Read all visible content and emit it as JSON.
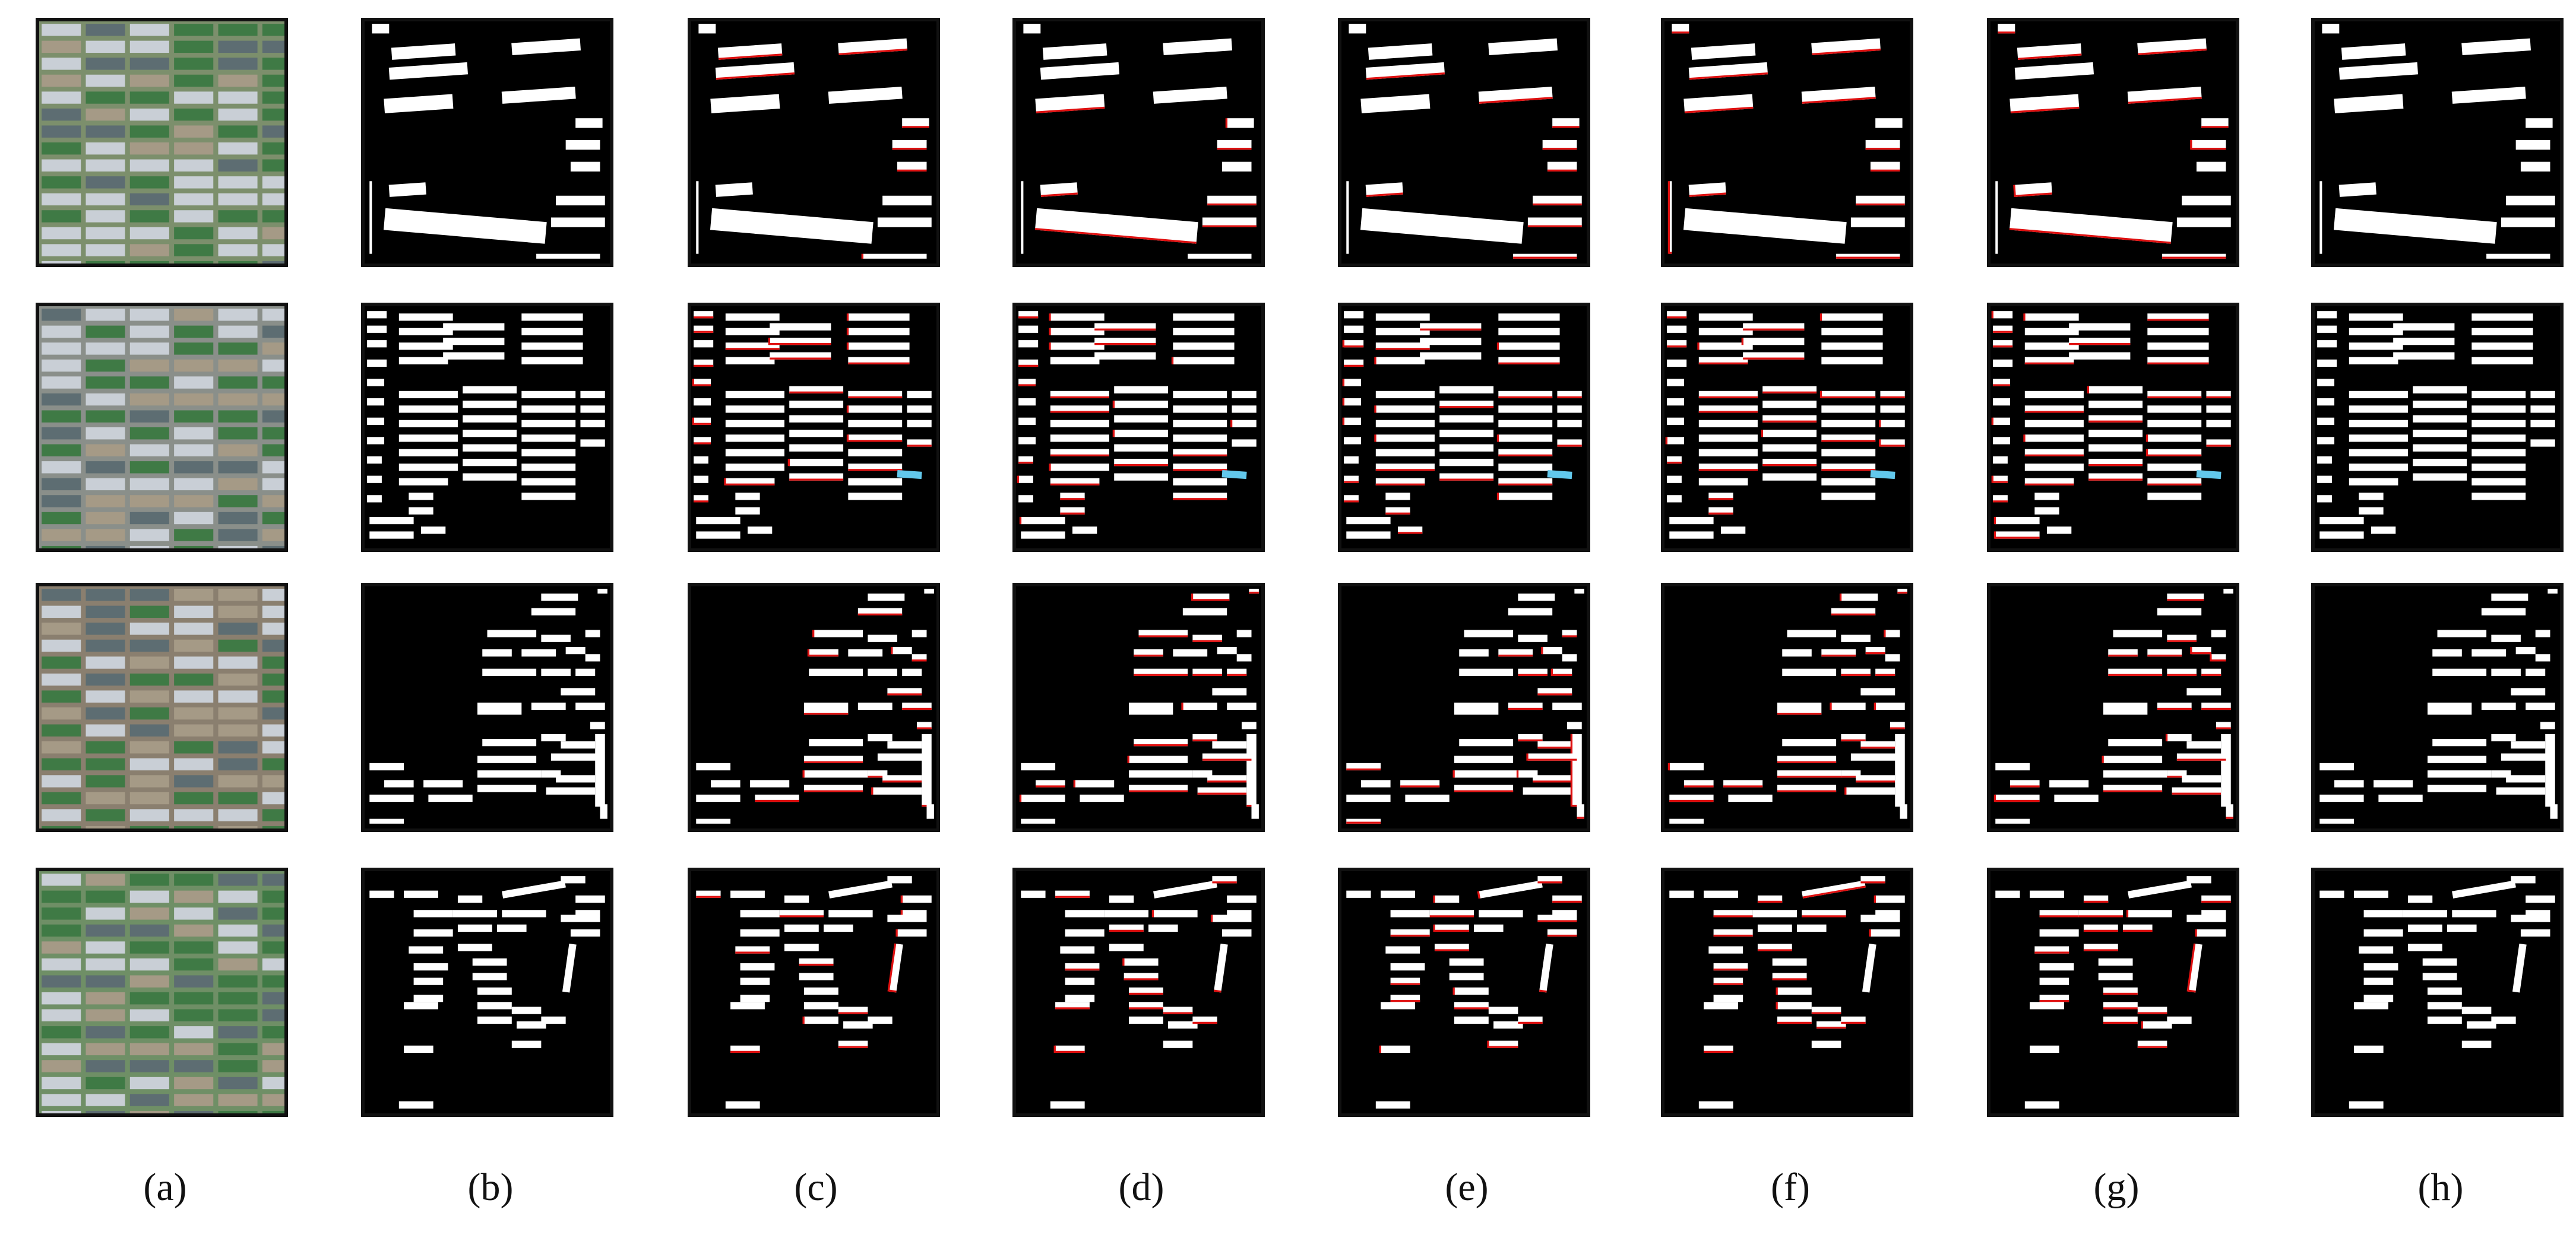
{
  "figure": {
    "panel_labels": [
      "(a)",
      "(b)",
      "(c)",
      "(d)",
      "(e)",
      "(f)",
      "(g)",
      "(h)"
    ],
    "rows": 4,
    "columns": 8
  },
  "colors": {
    "background": "#000000",
    "foreground": "#ffffff",
    "error_red": "#e01010",
    "highlight_blue": "#62c8ec",
    "border": "#111111"
  }
}
